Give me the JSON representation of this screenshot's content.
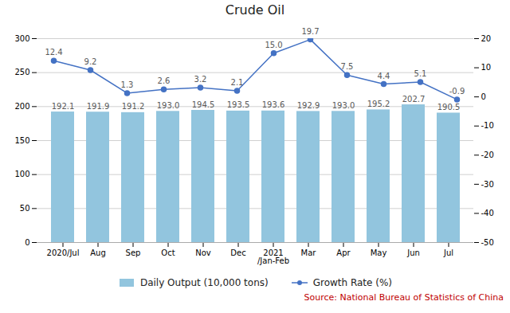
{
  "chart_data": {
    "type": "bar",
    "title": "Crude Oil",
    "categories": [
      "2020/Jul",
      "Aug",
      "Sep",
      "Oct",
      "Nov",
      "Dec",
      "2021\n/Jan-Feb",
      "Mar",
      "Apr",
      "May",
      "Jun",
      "Jul"
    ],
    "series": [
      {
        "name": "Daily Output (10,000 tons)",
        "type": "bar",
        "color": "#92C5DE",
        "values": [
          192.1,
          191.9,
          191.2,
          193.0,
          194.5,
          193.5,
          193.6,
          192.9,
          193.0,
          195.2,
          202.7,
          190.5
        ],
        "value_labels": [
          "192.1",
          "191.9",
          "191.2",
          "193.0",
          "194.5",
          "193.5",
          "193.6",
          "192.9",
          "193.0",
          "195.2",
          "202.7",
          "190.5"
        ]
      },
      {
        "name": "Growth Rate (%)",
        "type": "line",
        "axis": "y2",
        "color": "#4472C4",
        "marker": "circle",
        "values": [
          12.4,
          9.2,
          1.3,
          2.6,
          3.2,
          2.1,
          15.0,
          19.7,
          7.5,
          4.4,
          5.1,
          -0.9
        ],
        "value_labels": [
          "12.4",
          "9.2",
          "1.3",
          "2.6",
          "3.2",
          "2.1",
          "15.0",
          "19.7",
          "7.5",
          "4.4",
          "5.1",
          "-0.9"
        ]
      }
    ],
    "ylim": [
      0,
      300
    ],
    "yticks": [
      0,
      50,
      100,
      150,
      200,
      250,
      300
    ],
    "y2lim": [
      -50,
      20
    ],
    "y2ticks": [
      -50,
      -40,
      -30,
      -20,
      -10,
      0,
      10,
      20
    ],
    "grid": true,
    "data_labels": true,
    "legend": "bottom",
    "annotations": [
      {
        "text": "Source: National Bureau of Statistics of China",
        "color": "#C00000"
      }
    ]
  }
}
